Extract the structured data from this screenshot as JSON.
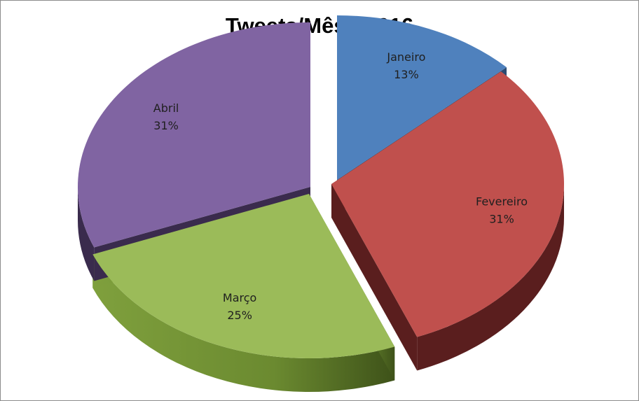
{
  "chart_data": {
    "type": "pie",
    "title": "Tweets/Mês - 2016",
    "legend": "none",
    "slices": [
      {
        "label": "Janeiro",
        "percent_label": "13%",
        "value": 13,
        "color": "#4f81bd",
        "side_color": "#2c4b72"
      },
      {
        "label": "Fevereiro",
        "percent_label": "31%",
        "value": 31,
        "color": "#c0504d",
        "side_color": "#5a1e1e"
      },
      {
        "label": "Março",
        "percent_label": "25%",
        "value": 25,
        "color": "#9bbb59",
        "side_color": "#4f6a25"
      },
      {
        "label": "Abril",
        "percent_label": "31%",
        "value": 31,
        "color": "#8064a2",
        "side_color": "#3a2b4d"
      }
    ]
  }
}
